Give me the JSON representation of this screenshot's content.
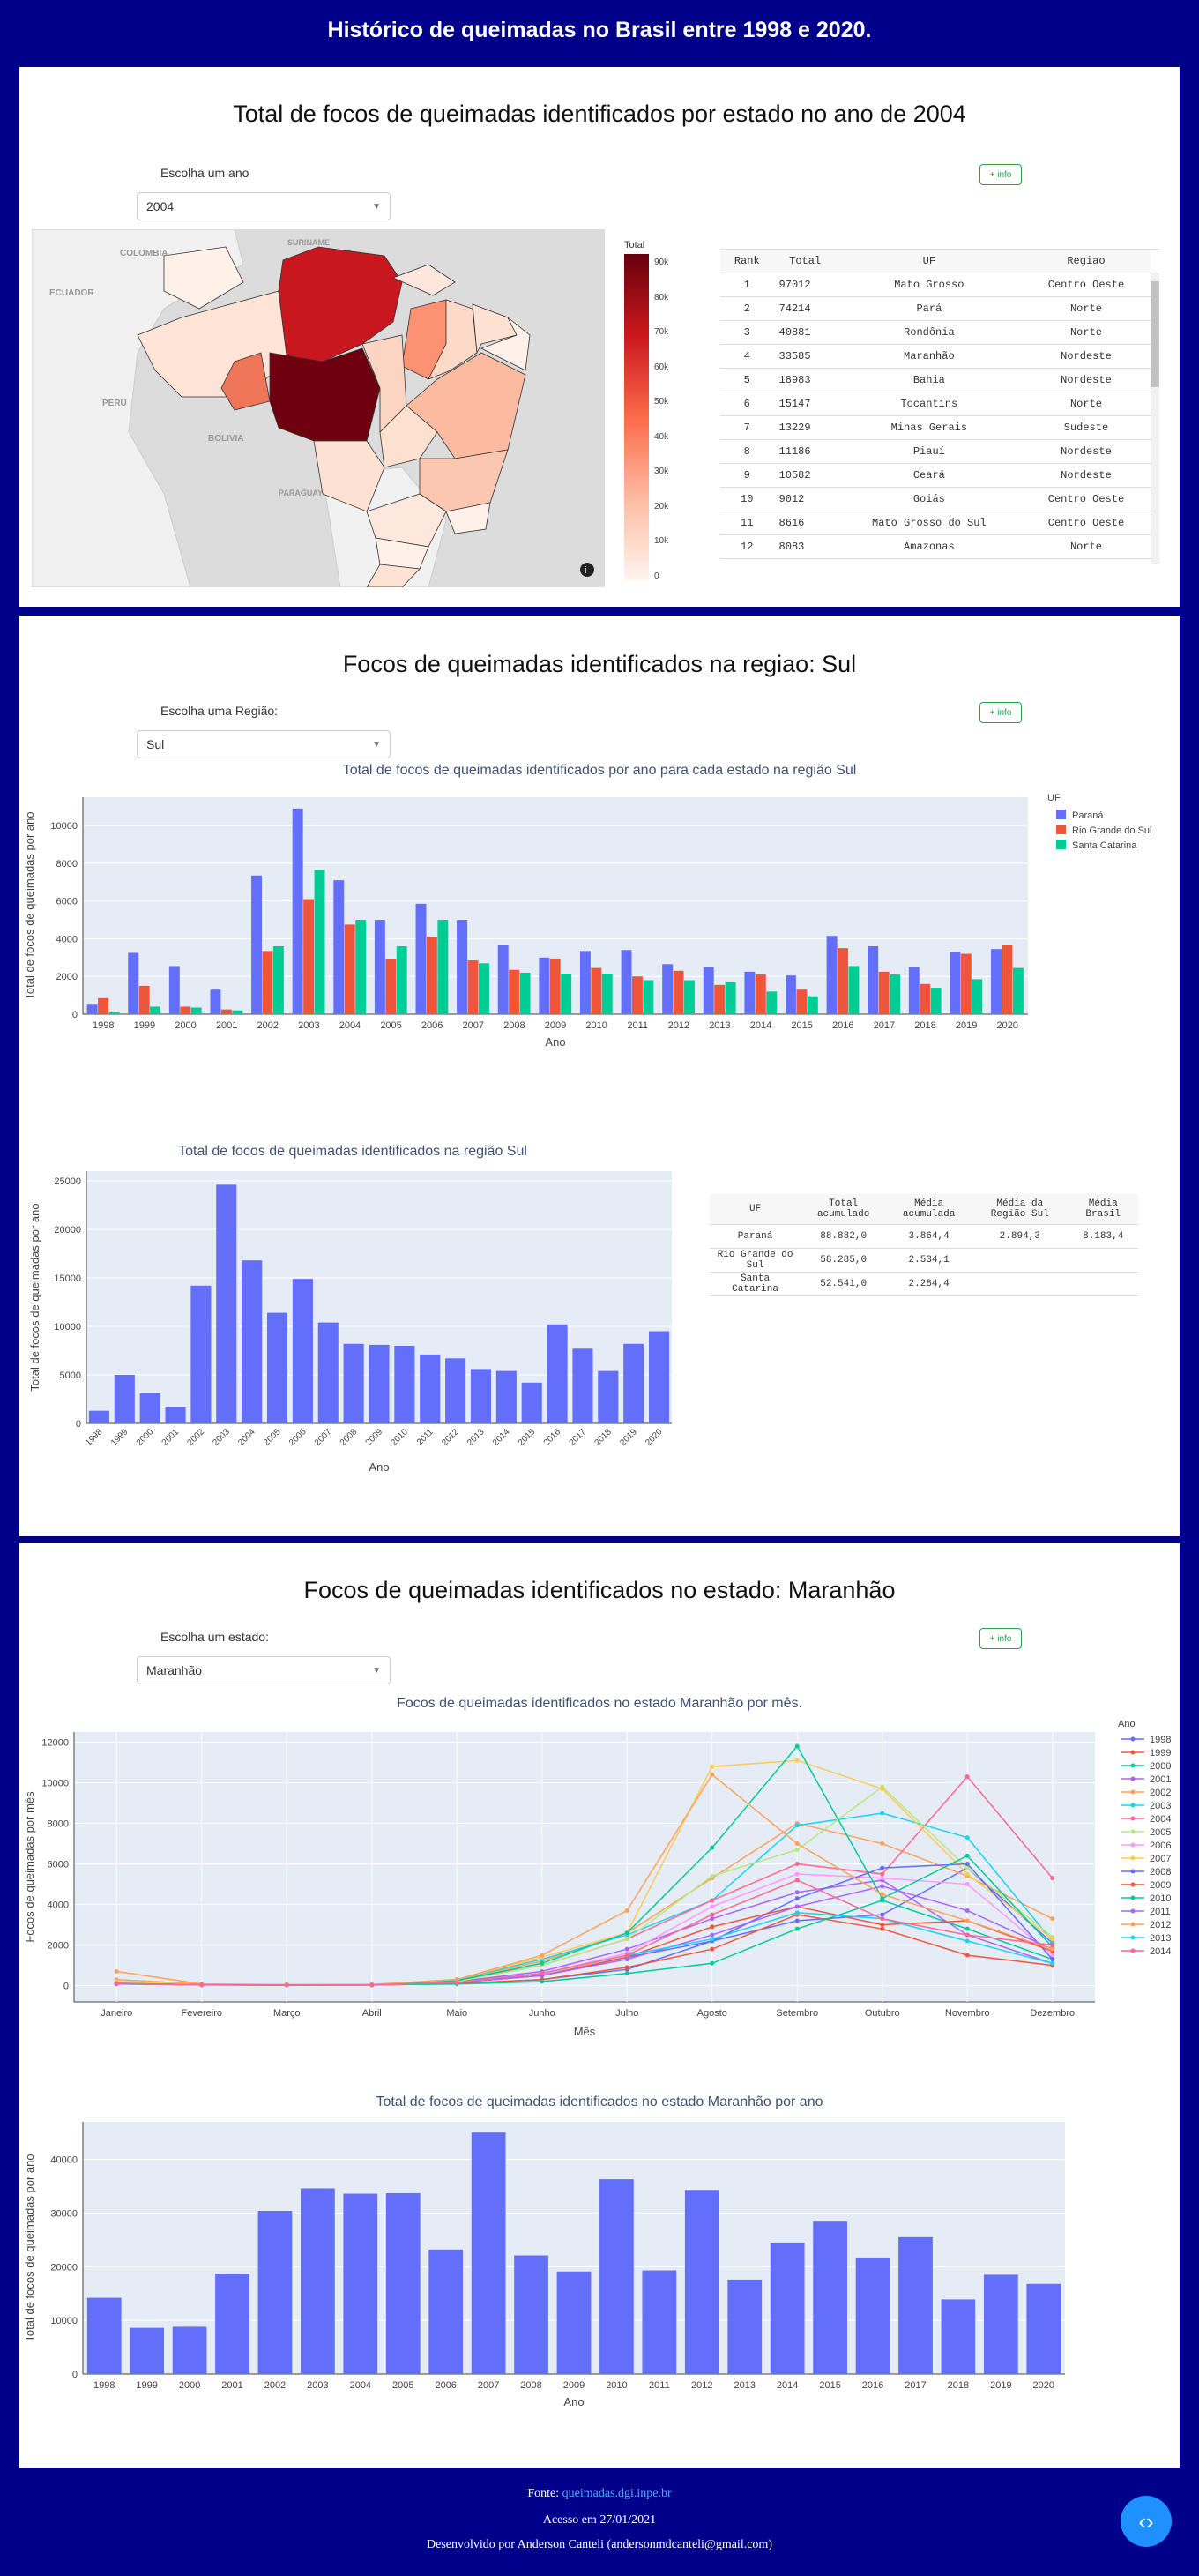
{
  "header": {
    "title": "Histórico de queimadas no Brasil entre 1998 e 2020."
  },
  "section1": {
    "title": "Total de focos de queimadas identificados por estado no ano de 2004",
    "dropdown_label": "Escolha um ano",
    "dropdown_value": "2004",
    "info_label": "+ info",
    "map_labels": [
      "COLOMBIA",
      "SURINAME",
      "ECUADOR",
      "PERU",
      "BOLIVIA",
      "PARAGUAY"
    ],
    "colorbar": {
      "title": "Total",
      "ticks": [
        "90k",
        "80k",
        "70k",
        "60k",
        "50k",
        "40k",
        "30k",
        "20k",
        "10k",
        "0"
      ]
    },
    "table": {
      "headers": [
        "Rank",
        "Total",
        "UF",
        "Regiao"
      ],
      "rows": [
        [
          "1",
          "97012",
          "Mato Grosso",
          "Centro Oeste"
        ],
        [
          "2",
          "74214",
          "Pará",
          "Norte"
        ],
        [
          "3",
          "40881",
          "Rondônia",
          "Norte"
        ],
        [
          "4",
          "33585",
          "Maranhão",
          "Nordeste"
        ],
        [
          "5",
          "18983",
          "Bahia",
          "Nordeste"
        ],
        [
          "6",
          "15147",
          "Tocantins",
          "Norte"
        ],
        [
          "7",
          "13229",
          "Minas Gerais",
          "Sudeste"
        ],
        [
          "8",
          "11186",
          "Piauí",
          "Nordeste"
        ],
        [
          "9",
          "10582",
          "Ceará",
          "Nordeste"
        ],
        [
          "10",
          "9012",
          "Goiás",
          "Centro Oeste"
        ],
        [
          "11",
          "8616",
          "Mato Grosso do Sul",
          "Centro Oeste"
        ],
        [
          "12",
          "8083",
          "Amazonas",
          "Norte"
        ]
      ]
    }
  },
  "section2": {
    "title": "Focos de queimadas identificados na regiao: Sul",
    "dropdown_label": "Escolha uma Região:",
    "dropdown_value": "Sul",
    "info_label": "+ info",
    "table": {
      "headers": [
        "UF",
        "Total acumulado",
        "Média acumulada",
        "Média da Região Sul",
        "Média Brasil"
      ],
      "rows": [
        [
          "Paraná",
          "88.882,0",
          "3.864,4",
          "2.894,3",
          "8.183,4"
        ],
        [
          "Rio Grande do Sul",
          "58.285,0",
          "2.534,1",
          "",
          ""
        ],
        [
          "Santa Catarina",
          "52.541,0",
          "2.284,4",
          "",
          ""
        ]
      ]
    }
  },
  "section3": {
    "title": "Focos de queimadas identificados no estado: Maranhão",
    "dropdown_label": "Escolha um estado:",
    "dropdown_value": "Maranhão",
    "info_label": "+ info"
  },
  "footer": {
    "source_prefix": "Fonte:",
    "source_link": "queimadas.dgi.inpe.br",
    "access": "Acesso em 27/01/2021",
    "dev": "Desenvolvido por Anderson Canteli (andersonmdcanteli@gmail.com)"
  },
  "nav_icon": "code-icon",
  "colors": {
    "background": "#00008B",
    "bar": "#636EFA",
    "parana": "#636EFA",
    "rs": "#EF553B",
    "sc": "#00CC96",
    "plot_bg": "#E5ECF6"
  },
  "chart_data": [
    {
      "type": "bar",
      "title": "Total de focos de queimadas identificados por ano para cada estado na região Sul",
      "xlabel": "Ano",
      "ylabel": "Total de focos de queimadas por ano",
      "ylim": [
        0,
        11500
      ],
      "yticks": [
        0,
        2000,
        4000,
        6000,
        8000,
        10000
      ],
      "legend_title": "UF",
      "categories": [
        "1998",
        "1999",
        "2000",
        "2001",
        "2002",
        "2003",
        "2004",
        "2005",
        "2006",
        "2007",
        "2008",
        "2009",
        "2010",
        "2011",
        "2012",
        "2013",
        "2014",
        "2015",
        "2016",
        "2017",
        "2018",
        "2019",
        "2020"
      ],
      "series": [
        {
          "name": "Paraná",
          "color": "#636EFA",
          "values": [
            500,
            3250,
            2550,
            1300,
            7350,
            10900,
            7100,
            5000,
            5850,
            5000,
            3650,
            3000,
            3350,
            3400,
            2650,
            2500,
            2250,
            2050,
            4150,
            3600,
            2500,
            3300,
            3450
          ]
        },
        {
          "name": "Rio Grande do Sul",
          "color": "#EF553B",
          "values": [
            850,
            1500,
            400,
            250,
            3350,
            6100,
            4750,
            2900,
            4100,
            2850,
            2350,
            2950,
            2450,
            2000,
            2300,
            1550,
            2100,
            1300,
            3500,
            2250,
            1600,
            3200,
            3650
          ]
        },
        {
          "name": "Santa Catarina",
          "color": "#00CC96",
          "values": [
            100,
            400,
            350,
            200,
            3600,
            7650,
            5000,
            3600,
            5000,
            2700,
            2200,
            2150,
            2150,
            1800,
            1800,
            1700,
            1200,
            950,
            2550,
            2100,
            1400,
            1850,
            2450
          ]
        }
      ]
    },
    {
      "type": "bar",
      "title": "Total de focos de queimadas identificados na região Sul",
      "xlabel": "Ano",
      "ylabel": "Total de focos de queimadas por ano",
      "ylim": [
        0,
        26000
      ],
      "yticks": [
        0,
        5000,
        10000,
        15000,
        20000,
        25000
      ],
      "categories": [
        "1998",
        "1999",
        "2000",
        "2001",
        "2002",
        "2003",
        "2004",
        "2005",
        "2006",
        "2007",
        "2008",
        "2009",
        "2010",
        "2011",
        "2012",
        "2013",
        "2014",
        "2015",
        "2016",
        "2017",
        "2018",
        "2019",
        "2020"
      ],
      "values": [
        1300,
        5000,
        3100,
        1650,
        14200,
        24600,
        16800,
        11400,
        14900,
        10400,
        8200,
        8100,
        8000,
        7100,
        6700,
        5600,
        5400,
        4200,
        10200,
        7700,
        5400,
        8200,
        9500
      ]
    },
    {
      "type": "line",
      "title": "Focos de queimadas identificados no estado Maranhão por mês.",
      "xlabel": "Mês",
      "ylabel": "Focos de queimadas por mês",
      "ylim": [
        -800,
        12500
      ],
      "yticks": [
        0,
        2000,
        4000,
        6000,
        8000,
        10000,
        12000
      ],
      "legend_title": "Ano",
      "categories": [
        "Janeiro",
        "Fevereiro",
        "Março",
        "Abril",
        "Maio",
        "Junho",
        "Julho",
        "Agosto",
        "Setembro",
        "Outubro",
        "Novembro",
        "Dezembro"
      ],
      "series": [
        {
          "name": "1998",
          "color": "#636EFA",
          "values": [
            150,
            50,
            30,
            40,
            100,
            300,
            800,
            2200,
            3200,
            3500,
            5800,
            2100
          ]
        },
        {
          "name": "1999",
          "color": "#EF553B",
          "values": [
            100,
            40,
            30,
            30,
            100,
            300,
            900,
            1800,
            3500,
            2800,
            1500,
            1000
          ]
        },
        {
          "name": "2000",
          "color": "#00CC96",
          "values": [
            80,
            30,
            20,
            30,
            80,
            200,
            600,
            1100,
            2800,
            4200,
            2800,
            1300
          ]
        },
        {
          "name": "2001",
          "color": "#AB63FA",
          "values": [
            120,
            50,
            40,
            40,
            200,
            700,
            1800,
            3300,
            4600,
            5200,
            2500,
            1100
          ]
        },
        {
          "name": "2002",
          "color": "#FFA15A",
          "values": [
            300,
            80,
            40,
            50,
            300,
            1200,
            2600,
            5300,
            8000,
            7000,
            5400,
            3300
          ]
        },
        {
          "name": "2003",
          "color": "#19D3F3",
          "values": [
            200,
            60,
            40,
            50,
            300,
            1300,
            2500,
            4200,
            7900,
            8500,
            7300,
            2200
          ]
        },
        {
          "name": "2004",
          "color": "#FF6692",
          "values": [
            150,
            60,
            40,
            40,
            250,
            1000,
            2300,
            4200,
            6000,
            5500,
            10300,
            5300
          ]
        },
        {
          "name": "2005",
          "color": "#B6E880",
          "values": [
            100,
            50,
            30,
            40,
            200,
            1000,
            2300,
            5400,
            6700,
            9800,
            5800,
            2400
          ]
        },
        {
          "name": "2006",
          "color": "#FF97FF",
          "values": [
            100,
            40,
            30,
            30,
            150,
            600,
            1600,
            3900,
            5500,
            5300,
            5000,
            1500
          ]
        },
        {
          "name": "2007",
          "color": "#FECB52",
          "values": [
            200,
            60,
            50,
            50,
            300,
            1400,
            2600,
            10800,
            11100,
            9700,
            5500,
            2300
          ]
        },
        {
          "name": "2008",
          "color": "#636EFA",
          "values": [
            100,
            40,
            30,
            30,
            150,
            500,
            1400,
            2200,
            4300,
            5800,
            6000,
            1300
          ]
        },
        {
          "name": "2009",
          "color": "#EF553B",
          "values": [
            100,
            40,
            30,
            40,
            150,
            500,
            1400,
            2900,
            3900,
            3000,
            3200,
            1700
          ]
        },
        {
          "name": "2010",
          "color": "#00CC96",
          "values": [
            100,
            50,
            30,
            40,
            250,
            1100,
            2600,
            6800,
            11800,
            4300,
            6400,
            1900
          ]
        },
        {
          "name": "2011",
          "color": "#AB63FA",
          "values": [
            80,
            40,
            30,
            30,
            150,
            500,
            1300,
            2500,
            3900,
            4900,
            3700,
            1800
          ]
        },
        {
          "name": "2012",
          "color": "#FFA15A",
          "values": [
            700,
            80,
            50,
            60,
            300,
            1500,
            3700,
            10400,
            7000,
            4500,
            3200,
            1800
          ]
        },
        {
          "name": "2013",
          "color": "#19D3F3",
          "values": [
            100,
            40,
            30,
            30,
            150,
            600,
            1500,
            2300,
            3600,
            3300,
            2200,
            1100
          ]
        },
        {
          "name": "2014",
          "color": "#FF6692",
          "values": [
            100,
            40,
            30,
            30,
            150,
            600,
            1500,
            3500,
            5200,
            3300,
            2500,
            2000
          ]
        }
      ]
    },
    {
      "type": "bar",
      "title": "Total de focos de queimadas identificados no estado Maranhão por ano",
      "xlabel": "Ano",
      "ylabel": "Total de focos de queimadas por ano",
      "ylim": [
        0,
        47000
      ],
      "yticks": [
        0,
        10000,
        20000,
        30000,
        40000
      ],
      "categories": [
        "1998",
        "1999",
        "2000",
        "2001",
        "2002",
        "2003",
        "2004",
        "2005",
        "2006",
        "2007",
        "2008",
        "2009",
        "2010",
        "2011",
        "2012",
        "2013",
        "2014",
        "2015",
        "2016",
        "2017",
        "2018",
        "2019",
        "2020"
      ],
      "values": [
        14200,
        8600,
        8800,
        18700,
        30400,
        34600,
        33600,
        33700,
        23200,
        45000,
        22100,
        19100,
        36300,
        19300,
        34300,
        17600,
        24500,
        28400,
        21700,
        25500,
        13900,
        18500,
        16800
      ]
    }
  ]
}
